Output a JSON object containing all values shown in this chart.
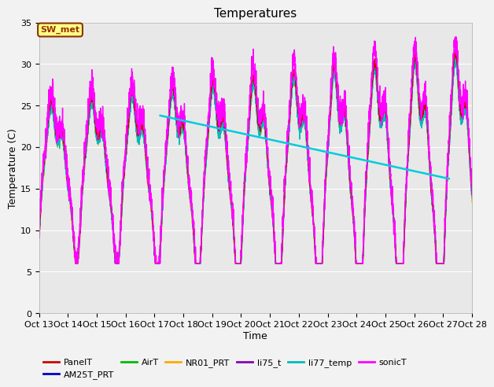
{
  "title": "Temperatures",
  "xlabel": "Time",
  "ylabel": "Temperature (C)",
  "ylim": [
    0,
    35
  ],
  "xlim": [
    13,
    28
  ],
  "xticks": [
    13,
    14,
    15,
    16,
    17,
    18,
    19,
    20,
    21,
    22,
    23,
    24,
    25,
    26,
    27,
    28
  ],
  "xtick_labels": [
    "Oct 13",
    "Oct 14",
    "Oct 15",
    "Oct 16",
    "Oct 17",
    "Oct 18",
    "Oct 19",
    "Oct 20",
    "Oct 21",
    "Oct 22",
    "Oct 23",
    "Oct 24",
    "Oct 25",
    "Oct 26",
    "Oct 27",
    "Oct 28"
  ],
  "yticks": [
    0,
    5,
    10,
    15,
    20,
    25,
    30,
    35
  ],
  "series_colors": {
    "PanelT": "#cc0000",
    "AM25T_PRT": "#0000cc",
    "AirT": "#00bb00",
    "NR01_PRT": "#ffaa00",
    "li75_t": "#8800bb",
    "li77_temp": "#00bbbb",
    "sonicT": "#ff00ff"
  },
  "fig_bg_color": "#f2f2f2",
  "plot_bg_color": "#e8e8e8",
  "sw_met_label": "SW_met",
  "sw_met_bg": "#ffff88",
  "sw_met_border": "#883300",
  "sw_met_text": "#993300",
  "trend_color": "#00ccdd",
  "trend_x": [
    17.2,
    27.2
  ],
  "trend_y": [
    23.8,
    16.2
  ],
  "legend_row1": [
    "PanelT",
    "AM25T_PRT",
    "AirT",
    "NR01_PRT",
    "li75_t",
    "li77_temp"
  ],
  "legend_row2": [
    "sonicT"
  ],
  "legend_colors_row1": [
    "#cc0000",
    "#0000cc",
    "#00bb00",
    "#ffaa00",
    "#8800bb",
    "#00bbbb"
  ],
  "legend_colors_row2": [
    "#ff00ff"
  ],
  "title_fontsize": 11,
  "axis_label_fontsize": 9,
  "tick_fontsize": 8
}
